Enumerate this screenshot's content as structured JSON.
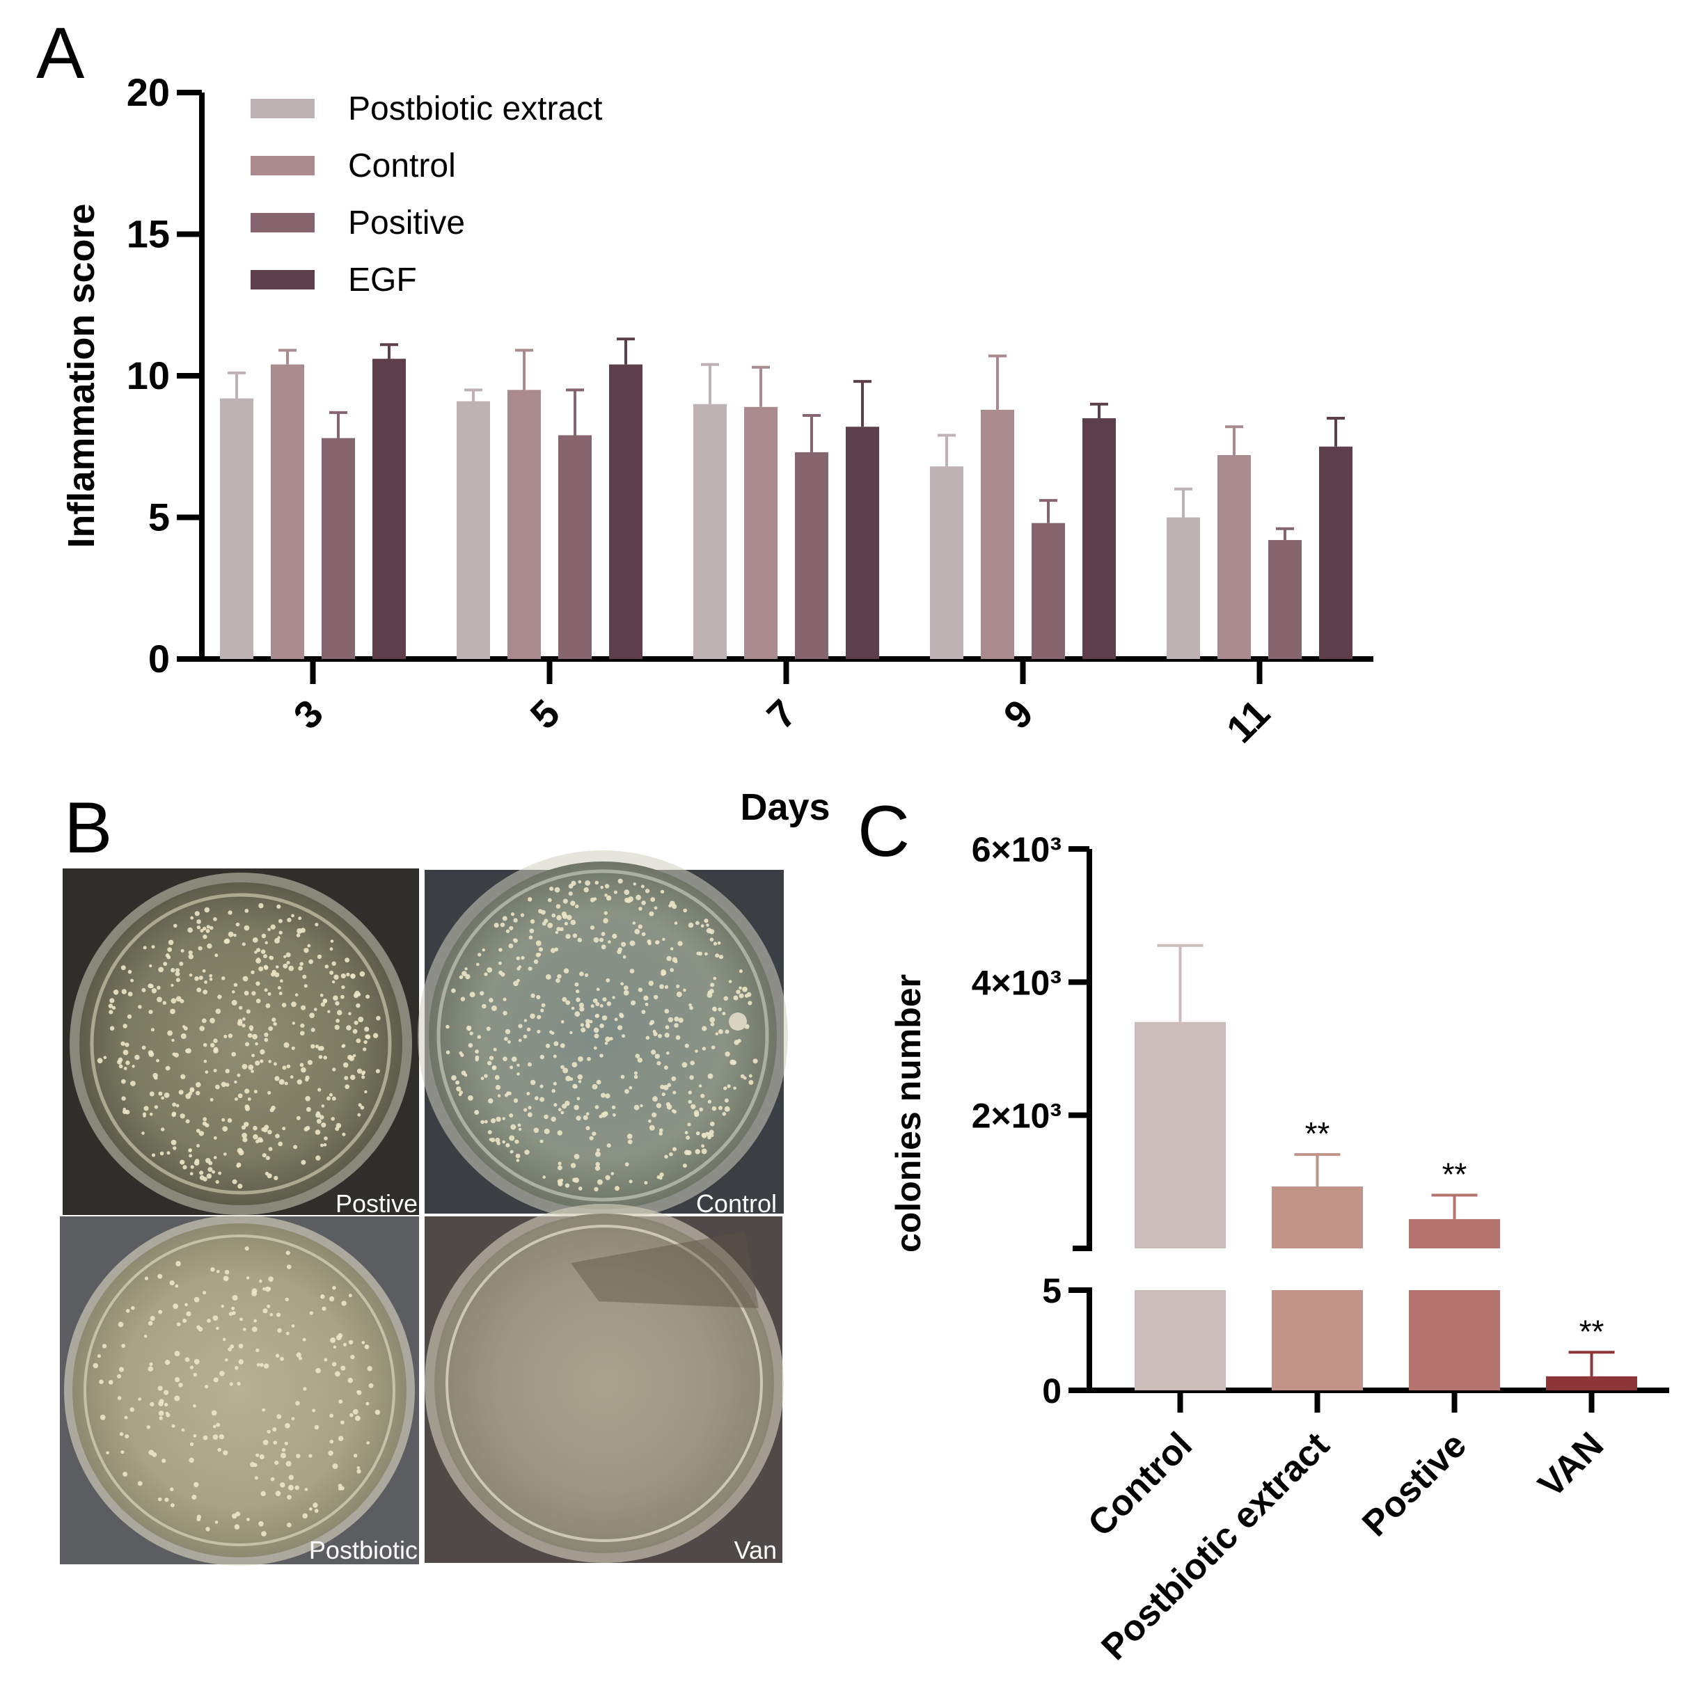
{
  "panels": {
    "a": "A",
    "b": "B",
    "c": "C"
  },
  "panel_b": {
    "plates": [
      {
        "label": "Postive",
        "colony_density": 0.85
      },
      {
        "label": "Control",
        "colony_density": 1.0
      },
      {
        "label": "Postbiotic",
        "colony_density": 0.45
      },
      {
        "label": "Van",
        "colony_density": 0.0
      }
    ]
  },
  "chart_data": [
    {
      "type": "bar",
      "title": "",
      "xlabel": "Days",
      "ylabel": "Inflammation score",
      "ylim": [
        0,
        20
      ],
      "yticks": [
        "0",
        "5",
        "10",
        "15",
        "20"
      ],
      "categories": [
        "3",
        "5",
        "7",
        "9",
        "11"
      ],
      "legend_position": "top-left",
      "series": [
        {
          "name": "Postbiotic extract",
          "color": "#bfb2b4",
          "values": [
            9.2,
            9.1,
            9.0,
            6.8,
            5.0
          ],
          "errors": [
            0.9,
            0.4,
            1.4,
            1.1,
            1.0
          ]
        },
        {
          "name": "Control",
          "color": "#a98a8f",
          "values": [
            10.4,
            9.5,
            8.9,
            8.8,
            7.2
          ],
          "errors": [
            0.5,
            1.4,
            1.4,
            1.9,
            1.0
          ]
        },
        {
          "name": "Positive",
          "color": "#86656f",
          "values": [
            7.8,
            7.9,
            7.3,
            4.8,
            4.2
          ],
          "errors": [
            0.9,
            1.6,
            1.3,
            0.8,
            0.4
          ]
        },
        {
          "name": "EGF",
          "color": "#5c3f4a",
          "values": [
            10.6,
            10.4,
            8.2,
            8.5,
            7.5
          ],
          "errors": [
            0.5,
            0.9,
            1.6,
            0.5,
            1.0
          ]
        }
      ]
    },
    {
      "type": "bar",
      "title": "",
      "xlabel": "",
      "ylabel": "colonies number",
      "axis_break": true,
      "lower_segment": {
        "ylim": [
          0,
          5
        ],
        "yticks": [
          "0",
          "5"
        ]
      },
      "upper_segment": {
        "ylim": [
          0,
          6000
        ],
        "yticks": [
          "2×10³",
          "4×10³",
          "6×10³"
        ]
      },
      "categories": [
        "Control",
        "Postbiotic extract",
        "Postive",
        "VAN"
      ],
      "values": [
        3400,
        930,
        440,
        0.7
      ],
      "errors": [
        1150,
        480,
        360,
        1.2
      ],
      "colors": [
        "#cbbbbb",
        "#c19389",
        "#b4736d",
        "#8e3637"
      ],
      "significance": [
        "",
        "**",
        "**",
        "**"
      ]
    }
  ]
}
